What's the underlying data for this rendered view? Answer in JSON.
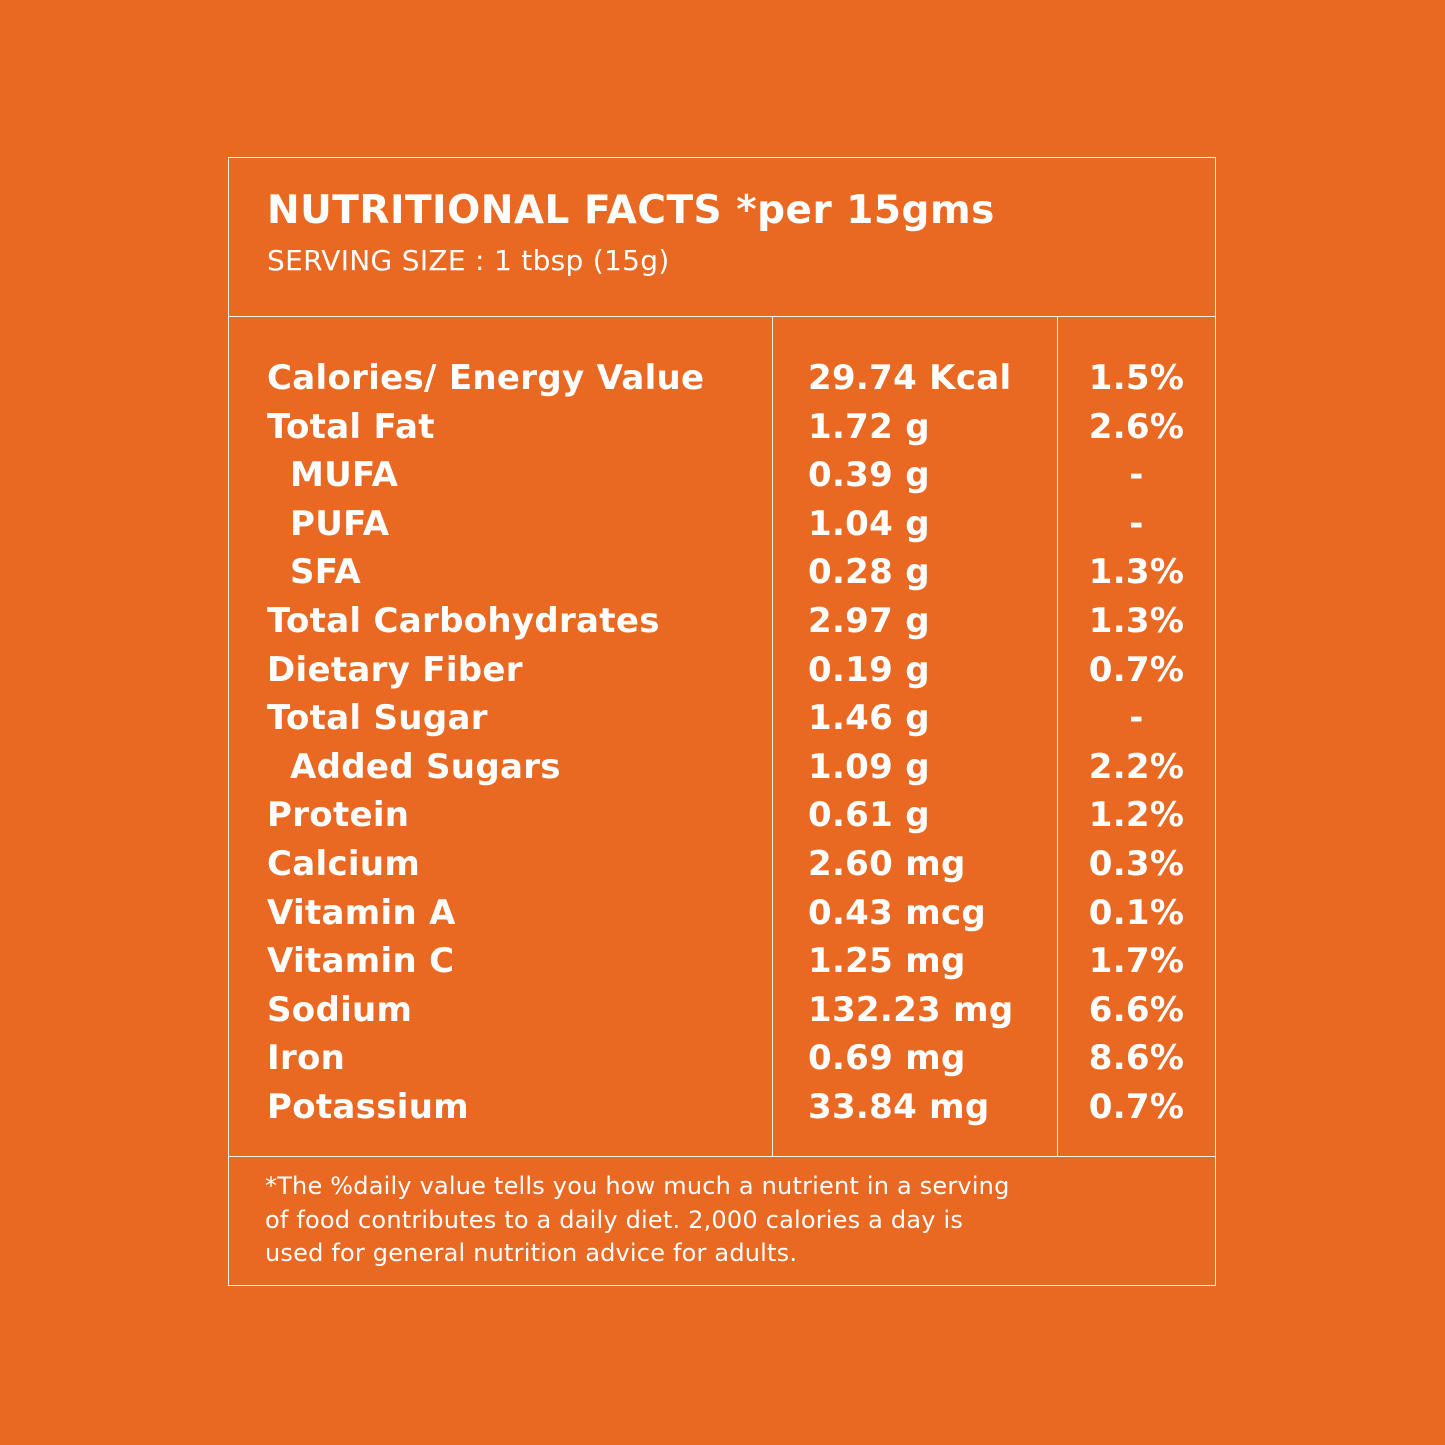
{
  "header": {
    "title": "NUTRITIONAL FACTS *per 15gms",
    "serving_size": "SERVING SIZE : 1 tbsp (15g)"
  },
  "nutrients": [
    {
      "name": "Calories/ Energy Value",
      "amount": "29.74 Kcal",
      "dv": "1.5%",
      "indent": false
    },
    {
      "name": "Total Fat",
      "amount": "1.72 g",
      "dv": "2.6%",
      "indent": false
    },
    {
      "name": "MUFA",
      "amount": "0.39 g",
      "dv": "-",
      "indent": true
    },
    {
      "name": "PUFA",
      "amount": "1.04 g",
      "dv": "-",
      "indent": true
    },
    {
      "name": "SFA",
      "amount": "0.28 g",
      "dv": "1.3%",
      "indent": true
    },
    {
      "name": "Total Carbohydrates",
      "amount": "2.97 g",
      "dv": "1.3%",
      "indent": false
    },
    {
      "name": "Dietary Fiber",
      "amount": "0.19 g",
      "dv": "0.7%",
      "indent": false
    },
    {
      "name": "Total Sugar",
      "amount": "1.46 g",
      "dv": "-",
      "indent": false
    },
    {
      "name": "Added Sugars",
      "amount": "1.09 g",
      "dv": "2.2%",
      "indent": true
    },
    {
      "name": "Protein",
      "amount": "0.61 g",
      "dv": "1.2%",
      "indent": false
    },
    {
      "name": "Calcium",
      "amount": "2.60 mg",
      "dv": "0.3%",
      "indent": false
    },
    {
      "name": "Vitamin A",
      "amount": "0.43 mcg",
      "dv": "0.1%",
      "indent": false
    },
    {
      "name": "Vitamin C",
      "amount": "1.25 mg",
      "dv": "1.7%",
      "indent": false
    },
    {
      "name": "Sodium",
      "amount": "132.23 mg",
      "dv": "6.6%",
      "indent": false
    },
    {
      "name": "Iron",
      "amount": "0.69 mg",
      "dv": "8.6%",
      "indent": false
    },
    {
      "name": "Potassium",
      "amount": "33.84 mg",
      "dv": "0.7%",
      "indent": false
    }
  ],
  "footnote": {
    "line1": "*The %daily value tells you how much a nutrient in a serving",
    "line2": "of food contributes to a daily diet. 2,000 calories a day is",
    "line3": "used for general nutrition advice for adults."
  },
  "colors": {
    "background": "#E96822",
    "text": "#FFFFFF"
  }
}
